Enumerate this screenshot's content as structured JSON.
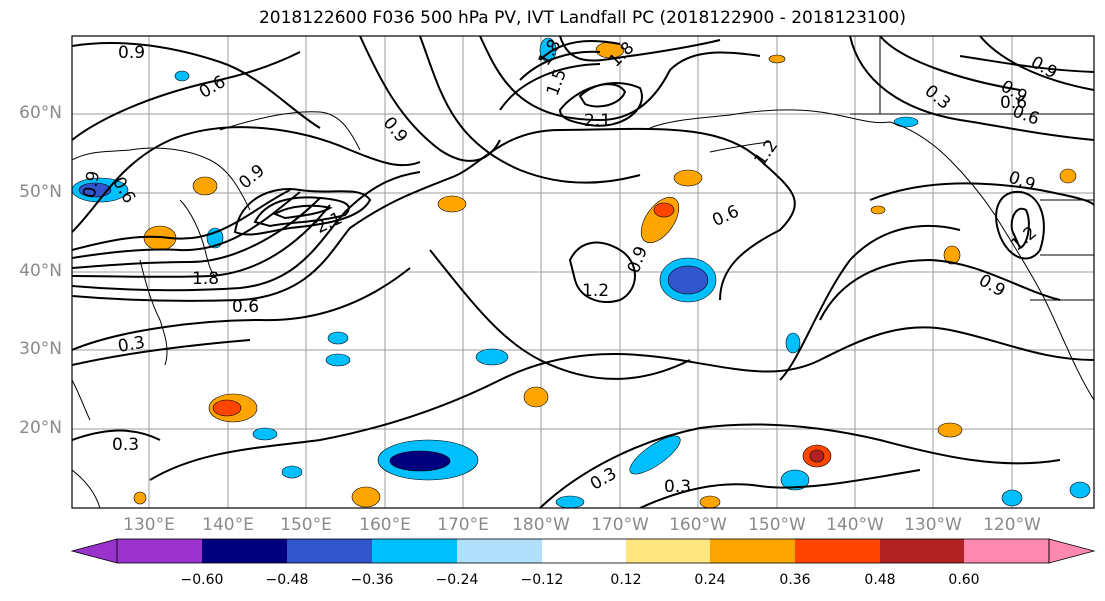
{
  "title": "2018122600 F036 500 hPa PV, IVT Landfall PC (2018122900 - 2018123100)",
  "lat_labels": [
    "60°N",
    "50°N",
    "40°N",
    "30°N",
    "20°N"
  ],
  "lon_labels": [
    "130°E",
    "140°E",
    "150°E",
    "160°E",
    "170°E",
    "180°W",
    "170°W",
    "160°W",
    "150°W",
    "140°W",
    "130°W",
    "120°W"
  ],
  "contour_labels": [
    "0.9",
    "0.6",
    "0.9",
    "0.6",
    "0.9",
    "2.1",
    "1.8",
    "0.6",
    "0.3",
    "0.3",
    "1.8",
    "1.5",
    "1.8",
    "2.1",
    "0.9",
    "1.2",
    "0.6",
    "1.2",
    "0.3",
    "0.3",
    "0.9",
    "0.3",
    "0.9",
    "0.6",
    "0.9",
    "1.2",
    "0.9",
    "0.6",
    "0.9"
  ],
  "colorbar": {
    "tick_labels": [
      "−0.60",
      "−0.48",
      "−0.36",
      "−0.24",
      "−0.12",
      "0.12",
      "0.24",
      "0.36",
      "0.48",
      "0.60"
    ],
    "colors": [
      "#9933cc",
      "#00007f",
      "#3355cc",
      "#00bfff",
      "#b0e0fa",
      "#ffffff",
      "#ffe680",
      "#ffa500",
      "#ff4500",
      "#b22222",
      "#ff88b0"
    ]
  },
  "colors": {
    "grid": "#9e9e9e",
    "contour": "#000000",
    "coast": "#000000",
    "tick_label": "#8a8a8a"
  }
}
